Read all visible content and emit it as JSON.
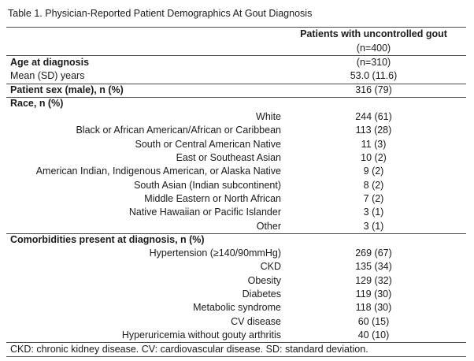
{
  "title": "Table 1. Physician-Reported Patient Demographics At Gout Diagnosis",
  "colors": {
    "background": "#ffffff",
    "text": "#1a1a1a",
    "rule": "#4a4a4a"
  },
  "table": {
    "column_header": {
      "line1": "Patients with uncontrolled gout",
      "line2": "(n=400)"
    },
    "rows": [
      {
        "label": "Age at diagnosis",
        "value": "(n=310)",
        "bold": true,
        "align": "left",
        "rule_above": false
      },
      {
        "label": "Mean (SD) years",
        "value": "53.0 (11.6)",
        "bold": false,
        "align": "left",
        "rule_above": false
      },
      {
        "label": "Patient sex (male), n (%)",
        "value": "316 (79)",
        "bold": true,
        "align": "left",
        "rule_above": true
      },
      {
        "label": "Race, n (%)",
        "value": "",
        "bold": true,
        "align": "left",
        "rule_above": true
      },
      {
        "label": "White",
        "value": "244 (61)",
        "bold": false,
        "align": "right",
        "rule_above": false
      },
      {
        "label": "Black or African American/African or Caribbean",
        "value": "113 (28)",
        "bold": false,
        "align": "right",
        "rule_above": false
      },
      {
        "label": "South or Central American Native",
        "value": "11 (3)",
        "bold": false,
        "align": "right",
        "rule_above": false
      },
      {
        "label": "East or Southeast Asian",
        "value": "10 (2)",
        "bold": false,
        "align": "right",
        "rule_above": false
      },
      {
        "label": "American Indian, Indigenous American, or Alaska Native",
        "value": "9 (2)",
        "bold": false,
        "align": "right",
        "rule_above": false
      },
      {
        "label": "South Asian (Indian subcontinent)",
        "value": "8 (2)",
        "bold": false,
        "align": "right",
        "rule_above": false
      },
      {
        "label": "Middle Eastern or North African",
        "value": "7 (2)",
        "bold": false,
        "align": "right",
        "rule_above": false
      },
      {
        "label": "Native Hawaiian or Pacific Islander",
        "value": "3 (1)",
        "bold": false,
        "align": "right",
        "rule_above": false
      },
      {
        "label": "Other",
        "value": "3 (1)",
        "bold": false,
        "align": "right",
        "rule_above": false
      },
      {
        "label": "Comorbidities present at diagnosis, n (%)",
        "value": "",
        "bold": true,
        "align": "left",
        "rule_above": true
      },
      {
        "label": "Hypertension (≥140/90mmHg)",
        "value": "269 (67)",
        "bold": false,
        "align": "right",
        "rule_above": false
      },
      {
        "label": "CKD",
        "value": "135 (34)",
        "bold": false,
        "align": "right",
        "rule_above": false
      },
      {
        "label": "Obesity",
        "value": "129 (32)",
        "bold": false,
        "align": "right",
        "rule_above": false
      },
      {
        "label": "Diabetes",
        "value": "119 (30)",
        "bold": false,
        "align": "right",
        "rule_above": false
      },
      {
        "label": "Metabolic syndrome",
        "value": "118 (30)",
        "bold": false,
        "align": "right",
        "rule_above": false
      },
      {
        "label": "CV disease",
        "value": "60 (15)",
        "bold": false,
        "align": "right",
        "rule_above": false
      },
      {
        "label": "Hyperuricemia without gouty arthritis",
        "value": "40 (10)",
        "bold": false,
        "align": "right",
        "rule_above": false
      }
    ],
    "footnote": "CKD: chronic kidney disease. CV: cardiovascular disease. SD: standard deviation."
  }
}
